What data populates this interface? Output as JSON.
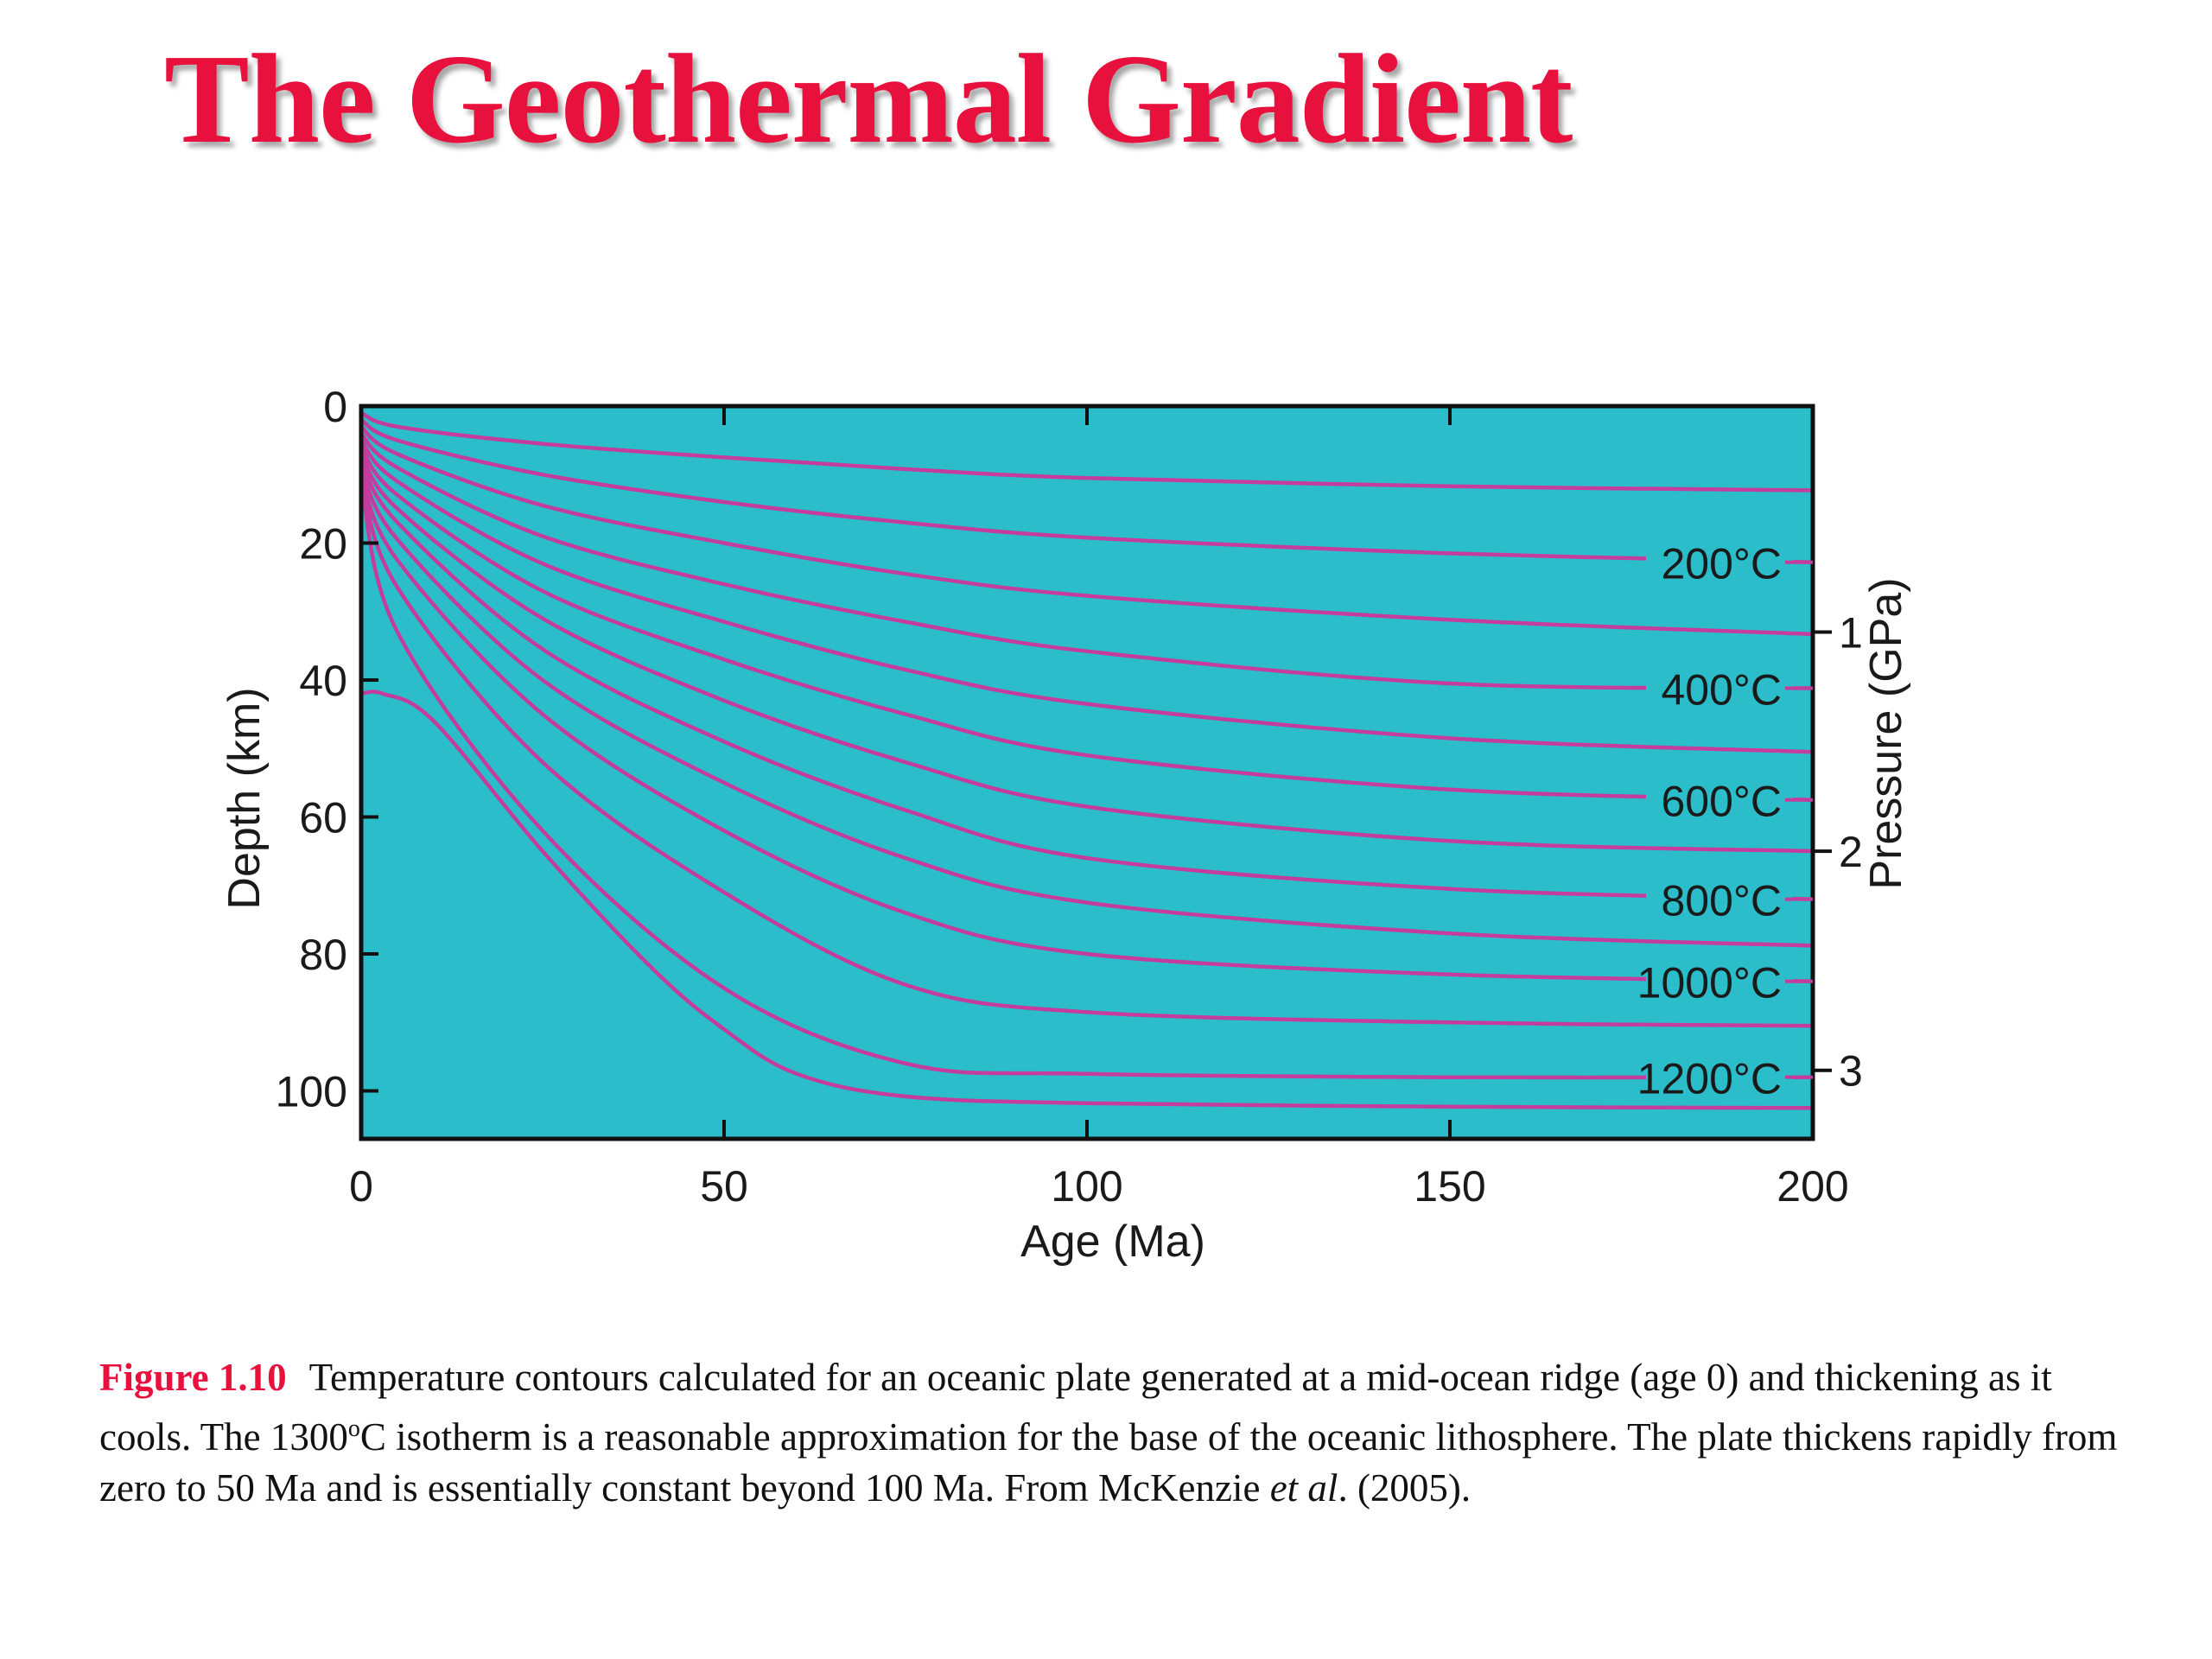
{
  "slide": {
    "title": "The Geothermal Gradient"
  },
  "chart_data": {
    "type": "line",
    "xlabel": "Age (Ma)",
    "ylabel": "Depth (km)",
    "y2label": "Pressure (GPa)",
    "xlim": [
      0,
      200
    ],
    "ylim": [
      0,
      107
    ],
    "x_ticks": [
      "0",
      "50",
      "100",
      "150",
      "200"
    ],
    "y_ticks": [
      "0",
      "20",
      "40",
      "60",
      "80",
      "100"
    ],
    "y2_ticks": [
      {
        "label": "1",
        "depth": 33
      },
      {
        "label": "2",
        "depth": 65
      },
      {
        "label": "3",
        "depth": 97
      }
    ],
    "grid": false,
    "background_color": "#2bbdc9",
    "line_color": "#c43c9c",
    "isotherms": [
      {
        "label": "",
        "x": [
          0,
          5,
          25,
          50,
          75,
          100,
          150,
          200
        ],
        "y": [
          1,
          3,
          5.5,
          7.5,
          9.2,
          10.5,
          11.7,
          12.3
        ]
      },
      {
        "label": "200°C",
        "x": [
          0,
          5,
          25,
          50,
          75,
          100,
          150,
          200
        ],
        "y": [
          2,
          5,
          10,
          14,
          17,
          19.2,
          21.5,
          22.8
        ]
      },
      {
        "label": "",
        "x": [
          0,
          5,
          25,
          50,
          75,
          100,
          150,
          200
        ],
        "y": [
          3,
          7,
          14.5,
          20,
          24.5,
          27.7,
          31.2,
          33.3
        ]
      },
      {
        "label": "400°C",
        "x": [
          0,
          5,
          25,
          50,
          75,
          100,
          150,
          200
        ],
        "y": [
          4,
          9,
          19,
          26,
          31.5,
          35.8,
          40.5,
          41.2
        ]
      },
      {
        "label": "",
        "x": [
          0,
          5,
          25,
          50,
          75,
          100,
          150,
          200
        ],
        "y": [
          5,
          11,
          23,
          31.5,
          38.5,
          43.5,
          48.5,
          50.5
        ]
      },
      {
        "label": "600°C",
        "x": [
          0,
          5,
          25,
          50,
          75,
          100,
          150,
          200
        ],
        "y": [
          6,
          13,
          27,
          37,
          45,
          51,
          56,
          57.5
        ]
      },
      {
        "label": "",
        "x": [
          0,
          5,
          25,
          50,
          75,
          100,
          150,
          200
        ],
        "y": [
          7,
          15,
          31,
          43,
          52,
          58.5,
          63.5,
          65
        ]
      },
      {
        "label": "800°C",
        "x": [
          0,
          5,
          25,
          50,
          75,
          100,
          150,
          200
        ],
        "y": [
          8,
          17,
          35.5,
          49,
          59,
          66,
          70.5,
          72
        ]
      },
      {
        "label": "",
        "x": [
          0,
          5,
          25,
          50,
          75,
          100,
          150,
          200
        ],
        "y": [
          9,
          19.5,
          40,
          55,
          66,
          72.5,
          77,
          78.8
        ]
      },
      {
        "label": "1000°C",
        "x": [
          0,
          5,
          25,
          50,
          75,
          100,
          150,
          200
        ],
        "y": [
          10,
          22.5,
          45,
          62,
          74,
          80,
          83,
          84
        ]
      },
      {
        "label": "",
        "x": [
          0,
          5,
          25,
          50,
          75,
          100,
          150,
          200
        ],
        "y": [
          10.5,
          26.5,
          52,
          71,
          84.5,
          88.5,
          90,
          90.5
        ]
      },
      {
        "label": "1200°C",
        "x": [
          0,
          5,
          25,
          50,
          75,
          100,
          150,
          200
        ],
        "y": [
          11,
          33,
          62,
          85,
          96,
          97.5,
          98,
          98
        ]
      },
      {
        "label": "",
        "x": [
          0,
          3,
          10,
          25,
          40,
          50,
          60,
          75,
          100,
          150,
          200
        ],
        "y": [
          42,
          42,
          46,
          65,
          82,
          91,
          97.5,
          100.8,
          101.8,
          102.3,
          102.5
        ]
      }
    ]
  },
  "caption": {
    "figure_label": "Figure 1.10",
    "part1": "Temperature contours calculated for an oceanic plate generated at a mid-ocean ridge (age 0) and thickening as it cools. The 1300",
    "superscript": "o",
    "part2": "C isotherm is a reasonable approximation for the base of the oceanic lithosphere. The plate thickens rapidly from zero to 50 Ma and is essentially constant beyond 100 Ma. From McKenzie ",
    "italic": "et al",
    "part3": ". (2005)."
  }
}
